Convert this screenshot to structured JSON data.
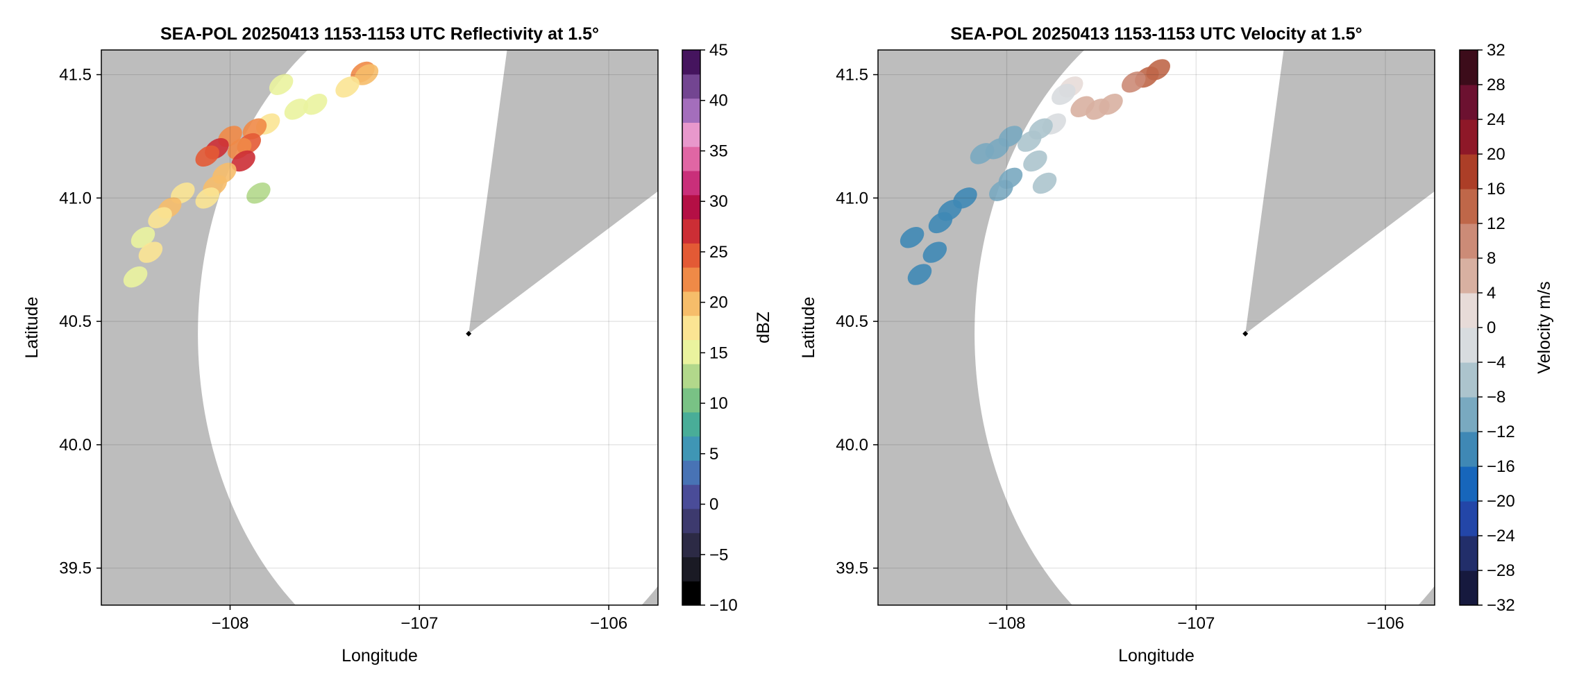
{
  "chart_data": [
    {
      "type": "heatmap",
      "title": "SEA-POL 20250413 1153-1153 UTC Reflectivity at 1.5°",
      "xlabel": "Longitude",
      "ylabel": "Latitude",
      "xlim": [
        -108.68,
        -105.74
      ],
      "ylim": [
        39.35,
        41.6
      ],
      "xticks": [
        -108,
        -107,
        -106
      ],
      "xtick_labels": [
        "−108",
        "−107",
        "−106"
      ],
      "yticks": [
        39.5,
        40.0,
        40.5,
        41.0,
        41.5
      ],
      "ytick_labels": [
        "39.5",
        "40.0",
        "40.5",
        "41.0",
        "41.5"
      ],
      "grid": true,
      "background_color": "#bdbdbd",
      "coverage_color": "#ffffff",
      "radar_site": {
        "lon": -106.74,
        "lat": 40.45
      },
      "range_deg": 1.43,
      "blocked_sector_deg": [
        10,
        60
      ],
      "colorbar": {
        "label": "dBZ",
        "vmin": -10,
        "vmax": 45,
        "ticks": [
          -10,
          -5,
          0,
          5,
          10,
          15,
          20,
          25,
          30,
          35,
          40,
          45
        ],
        "tick_labels": [
          "−10",
          "−5",
          "0",
          "5",
          "10",
          "15",
          "20",
          "25",
          "30",
          "35",
          "40",
          "45"
        ],
        "colors": [
          "#000000",
          "#1a1a24",
          "#2c2a45",
          "#3d3a6e",
          "#4a4c98",
          "#4873b5",
          "#3f96b5",
          "#49ad98",
          "#79c285",
          "#b2d88b",
          "#eaf39e",
          "#fbe493",
          "#f6bd6a",
          "#ef8a47",
          "#e35a35",
          "#cc2e35",
          "#b40f45",
          "#c92f7a",
          "#e066a4",
          "#e898cc",
          "#a46ebc",
          "#734591",
          "#45145e"
        ]
      },
      "echoes": [
        {
          "lon": -107.3,
          "lat": 41.51,
          "value": 23
        },
        {
          "lon": -107.28,
          "lat": 41.5,
          "value": 20
        },
        {
          "lon": -107.38,
          "lat": 41.45,
          "value": 18
        },
        {
          "lon": -107.55,
          "lat": 41.38,
          "value": 16
        },
        {
          "lon": -107.65,
          "lat": 41.36,
          "value": 15
        },
        {
          "lon": -107.73,
          "lat": 41.46,
          "value": 15
        },
        {
          "lon": -107.8,
          "lat": 41.3,
          "value": 18
        },
        {
          "lon": -107.87,
          "lat": 41.28,
          "value": 22
        },
        {
          "lon": -107.9,
          "lat": 41.22,
          "value": 25
        },
        {
          "lon": -107.95,
          "lat": 41.2,
          "value": 22
        },
        {
          "lon": -108.0,
          "lat": 41.25,
          "value": 23
        },
        {
          "lon": -108.07,
          "lat": 41.2,
          "value": 26
        },
        {
          "lon": -108.12,
          "lat": 41.17,
          "value": 24
        },
        {
          "lon": -107.93,
          "lat": 41.15,
          "value": 26
        },
        {
          "lon": -108.03,
          "lat": 41.1,
          "value": 20
        },
        {
          "lon": -108.08,
          "lat": 41.05,
          "value": 19
        },
        {
          "lon": -108.12,
          "lat": 41.0,
          "value": 18
        },
        {
          "lon": -107.85,
          "lat": 41.02,
          "value": 13
        },
        {
          "lon": -108.25,
          "lat": 41.02,
          "value": 17
        },
        {
          "lon": -108.32,
          "lat": 40.96,
          "value": 19
        },
        {
          "lon": -108.37,
          "lat": 40.92,
          "value": 18
        },
        {
          "lon": -108.46,
          "lat": 40.84,
          "value": 16
        },
        {
          "lon": -108.42,
          "lat": 40.78,
          "value": 17
        },
        {
          "lon": -108.5,
          "lat": 40.68,
          "value": 16
        }
      ]
    },
    {
      "type": "heatmap",
      "title": "SEA-POL 20250413 1153-1153 UTC Velocity at 1.5°",
      "xlabel": "Longitude",
      "ylabel": "Latitude",
      "xlim": [
        -108.68,
        -105.74
      ],
      "ylim": [
        39.35,
        41.6
      ],
      "xticks": [
        -108,
        -107,
        -106
      ],
      "xtick_labels": [
        "−108",
        "−107",
        "−106"
      ],
      "yticks": [
        39.5,
        40.0,
        40.5,
        41.0,
        41.5
      ],
      "ytick_labels": [
        "39.5",
        "40.0",
        "40.5",
        "41.0",
        "41.5"
      ],
      "grid": true,
      "background_color": "#bdbdbd",
      "coverage_color": "#ffffff",
      "radar_site": {
        "lon": -106.74,
        "lat": 40.45
      },
      "range_deg": 1.43,
      "blocked_sector_deg": [
        10,
        60
      ],
      "colorbar": {
        "label": "Velocity m/s",
        "vmin": -32,
        "vmax": 32,
        "ticks": [
          -32,
          -28,
          -24,
          -20,
          -16,
          -12,
          -8,
          -4,
          0,
          4,
          8,
          12,
          16,
          20,
          24,
          28,
          32
        ],
        "tick_labels": [
          "−32",
          "−28",
          "−24",
          "−20",
          "−16",
          "−12",
          "−8",
          "−4",
          "0",
          "4",
          "8",
          "12",
          "16",
          "20",
          "24",
          "28",
          "32"
        ],
        "colors": [
          "#16193e",
          "#222e6a",
          "#2346a8",
          "#1766bb",
          "#3f88b5",
          "#79a9c0",
          "#acc4cd",
          "#d8dcdf",
          "#e7dbd8",
          "#d8b0a1",
          "#cc8b77",
          "#bf6749",
          "#ac3e27",
          "#8e1828",
          "#6c1130",
          "#3c0c1a"
        ]
      },
      "echoes": [
        {
          "lon": -107.2,
          "lat": 41.52,
          "value": 14
        },
        {
          "lon": -107.26,
          "lat": 41.49,
          "value": 13
        },
        {
          "lon": -107.33,
          "lat": 41.47,
          "value": 11
        },
        {
          "lon": -107.45,
          "lat": 41.38,
          "value": 6
        },
        {
          "lon": -107.52,
          "lat": 41.36,
          "value": 6
        },
        {
          "lon": -107.6,
          "lat": 41.37,
          "value": 5
        },
        {
          "lon": -107.66,
          "lat": 41.45,
          "value": 2
        },
        {
          "lon": -107.7,
          "lat": 41.42,
          "value": -3
        },
        {
          "lon": -107.75,
          "lat": 41.3,
          "value": -2
        },
        {
          "lon": -107.82,
          "lat": 41.28,
          "value": -6
        },
        {
          "lon": -107.88,
          "lat": 41.23,
          "value": -8
        },
        {
          "lon": -107.98,
          "lat": 41.25,
          "value": -11
        },
        {
          "lon": -108.05,
          "lat": 41.2,
          "value": -10
        },
        {
          "lon": -108.13,
          "lat": 41.18,
          "value": -12
        },
        {
          "lon": -107.85,
          "lat": 41.15,
          "value": -6
        },
        {
          "lon": -107.98,
          "lat": 41.08,
          "value": -9
        },
        {
          "lon": -108.03,
          "lat": 41.03,
          "value": -10
        },
        {
          "lon": -107.8,
          "lat": 41.06,
          "value": -7
        },
        {
          "lon": -108.22,
          "lat": 41.0,
          "value": -14
        },
        {
          "lon": -108.3,
          "lat": 40.95,
          "value": -15
        },
        {
          "lon": -108.35,
          "lat": 40.9,
          "value": -16
        },
        {
          "lon": -108.5,
          "lat": 40.84,
          "value": -15
        },
        {
          "lon": -108.38,
          "lat": 40.78,
          "value": -14
        },
        {
          "lon": -108.46,
          "lat": 40.69,
          "value": -16
        }
      ]
    }
  ]
}
